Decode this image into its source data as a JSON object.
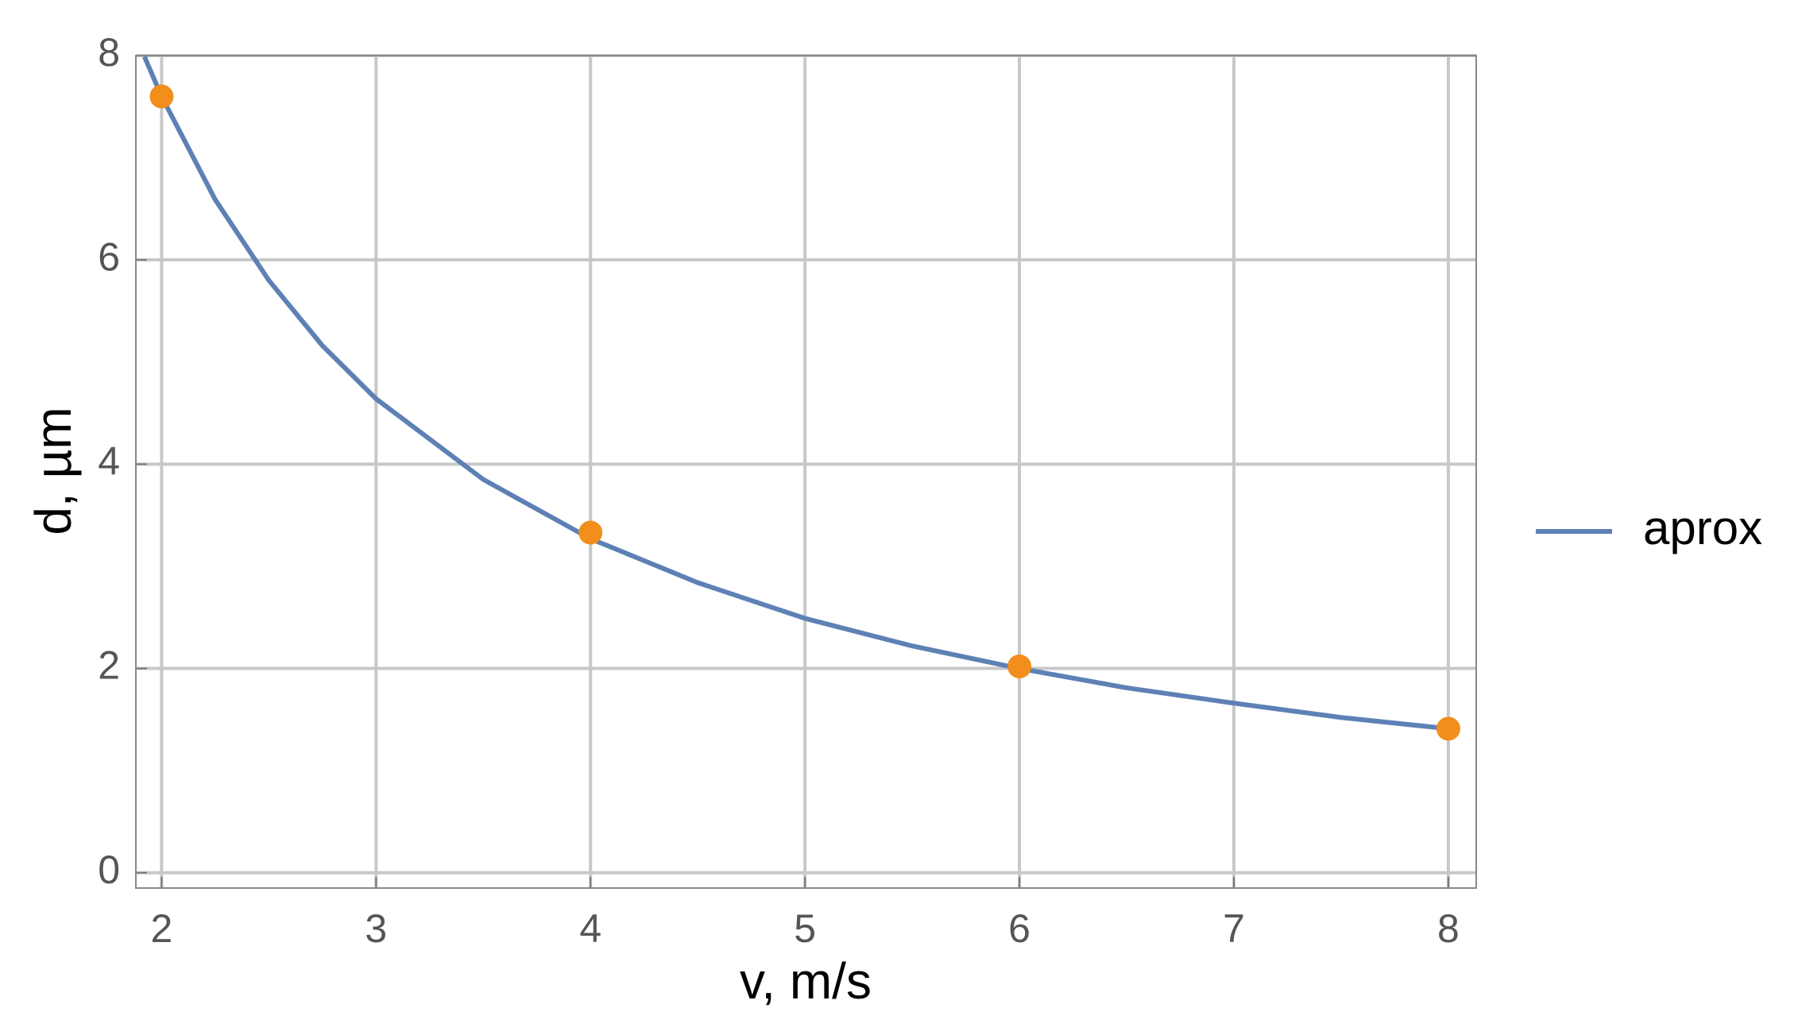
{
  "chart_data": {
    "type": "line",
    "x_label": "v, m/s",
    "y_label": "d, µm",
    "xlim": [
      1.88,
      8.13
    ],
    "ylim": [
      -0.15,
      8
    ],
    "xticks": [
      2,
      3,
      4,
      5,
      6,
      7,
      8
    ],
    "yticks": [
      0,
      2,
      4,
      6,
      8
    ],
    "grid": true,
    "legend": "right",
    "series": [
      {
        "name": "aprox",
        "type": "line",
        "color": "#5e81b5",
        "x": [
          1.92,
          2,
          2.25,
          2.5,
          2.75,
          3,
          3.5,
          4,
          4.5,
          5,
          5.5,
          6,
          6.5,
          7,
          7.5,
          8
        ],
        "values": [
          7.99,
          7.6,
          6.59,
          5.8,
          5.16,
          4.64,
          3.85,
          3.27,
          2.84,
          2.49,
          2.22,
          2.0,
          1.81,
          1.66,
          1.52,
          1.41
        ]
      },
      {
        "type": "scatter",
        "color": "#f28e1c",
        "x": [
          2,
          4,
          6,
          8
        ],
        "values": [
          7.6,
          3.33,
          2.02,
          1.41
        ]
      }
    ]
  }
}
